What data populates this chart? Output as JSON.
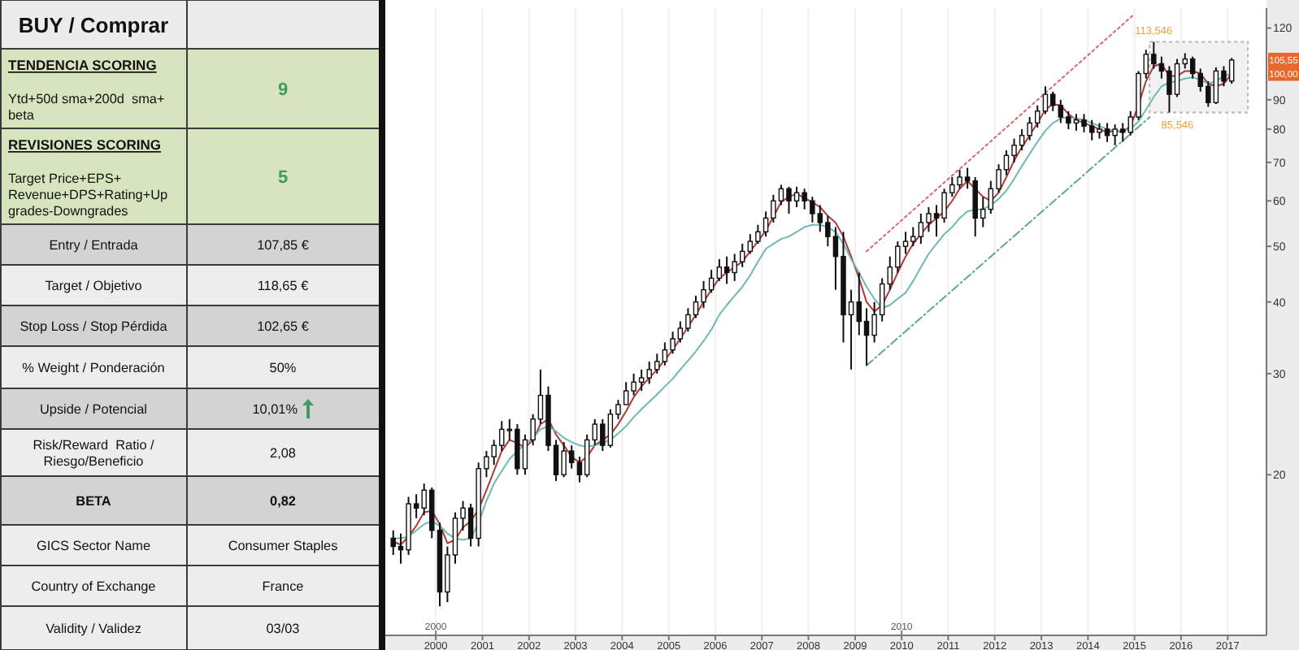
{
  "chart_data": [
    {
      "type": "other",
      "title": "BUY / Comprar",
      "categories": [
        "TENDENCIA SCORING\nYtd+50d sma+200d  sma+\nbeta",
        "REVISIONES SCORING\nTarget Price+EPS+\nRevenue+DPS+Rating+Up\ngrades-Downgrades",
        "Entry / Entrada",
        "Target / Objetivo",
        "Stop Loss / Stop Pérdida",
        "% Weight / Ponderación",
        "Upside / Potencial",
        "Risk/Reward  Ratio /\nRiesgo/Beneficio",
        "BETA",
        "GICS Sector Name",
        "Country of Exchange",
        "Validity / Validez"
      ],
      "annotations": [
        "9",
        "5",
        "107,85 €",
        "118,65 €",
        "102,65 €",
        "50%",
        "10,01%",
        "2,08",
        "0,82",
        "Consumer Staples",
        "France",
        "03/03"
      ]
    },
    {
      "type": "candlestick",
      "log": true,
      "grid": "x",
      "xlim": [
        "1998-12",
        "2017-11"
      ],
      "xticks": [
        "2000",
        "2001",
        "2002",
        "2003",
        "2004",
        "2005",
        "2006",
        "2007",
        "2008",
        "2009",
        "2010",
        "2011",
        "2012",
        "2013",
        "2014",
        "2015",
        "2016",
        "2017"
      ],
      "x2lim": [
        "1998-12",
        "2017-11"
      ],
      "x2ticks": [
        "2000",
        "2010"
      ],
      "ylim": [
        10.5,
        130
      ],
      "yticks": [
        20,
        30,
        40,
        50,
        60,
        70,
        80,
        90,
        120
      ],
      "x": [
        "1999-02",
        "1999-04",
        "1999-06",
        "1999-08",
        "1999-10",
        "1999-12",
        "2000-02",
        "2000-04",
        "2000-06",
        "2000-08",
        "2000-10",
        "2000-12",
        "2001-02",
        "2001-04",
        "2001-06",
        "2001-08",
        "2001-10",
        "2001-12",
        "2002-02",
        "2002-04",
        "2002-06",
        "2002-08",
        "2002-10",
        "2002-12",
        "2003-02",
        "2003-04",
        "2003-06",
        "2003-08",
        "2003-10",
        "2003-12",
        "2004-02",
        "2004-04",
        "2004-06",
        "2004-08",
        "2004-10",
        "2004-12",
        "2005-02",
        "2005-04",
        "2005-06",
        "2005-08",
        "2005-10",
        "2005-12",
        "2006-02",
        "2006-04",
        "2006-06",
        "2006-08",
        "2006-10",
        "2006-12",
        "2007-02",
        "2007-04",
        "2007-06",
        "2007-08",
        "2007-10",
        "2007-12",
        "2008-02",
        "2008-04",
        "2008-06",
        "2008-08",
        "2008-10",
        "2008-12",
        "2009-02",
        "2009-04",
        "2009-06",
        "2009-08",
        "2009-10",
        "2009-12",
        "2010-02",
        "2010-04",
        "2010-06",
        "2010-08",
        "2010-10",
        "2010-12",
        "2011-02",
        "2011-04",
        "2011-06",
        "2011-08",
        "2011-10",
        "2011-12",
        "2012-02",
        "2012-04",
        "2012-06",
        "2012-08",
        "2012-10",
        "2012-12",
        "2013-02",
        "2013-04",
        "2013-06",
        "2013-08",
        "2013-10",
        "2013-12",
        "2014-02",
        "2014-04",
        "2014-06",
        "2014-08",
        "2014-10",
        "2014-12",
        "2015-02",
        "2015-04",
        "2015-06",
        "2015-08",
        "2015-10",
        "2015-12",
        "2016-02",
        "2016-04",
        "2016-06",
        "2016-08",
        "2016-10",
        "2016-12",
        "2017-02"
      ],
      "ohlc": [
        [
          15.5,
          16,
          14.5,
          15
        ],
        [
          15,
          15.8,
          14,
          14.8
        ],
        [
          14.8,
          18.3,
          14.5,
          17.8
        ],
        [
          17.8,
          18.5,
          16.8,
          17.5
        ],
        [
          17.5,
          19.3,
          17,
          18.8
        ],
        [
          18.8,
          19,
          15.5,
          16
        ],
        [
          16,
          16.5,
          11.8,
          12.5
        ],
        [
          12.5,
          15,
          12,
          14.5
        ],
        [
          14.5,
          17.2,
          14,
          16.8
        ],
        [
          16.8,
          18,
          16,
          17.5
        ],
        [
          17.5,
          17.8,
          15,
          15.5
        ],
        [
          15.5,
          21,
          15,
          20.5
        ],
        [
          20.5,
          22,
          19.8,
          21.5
        ],
        [
          21.5,
          23,
          20.8,
          22.5
        ],
        [
          22.5,
          24.8,
          22,
          24
        ],
        [
          24,
          25,
          23,
          24
        ],
        [
          24,
          24.5,
          20,
          20.5
        ],
        [
          20.5,
          23.5,
          20,
          23
        ],
        [
          23,
          25.5,
          22.5,
          25
        ],
        [
          25,
          30.5,
          24.5,
          27.5
        ],
        [
          27.5,
          28.5,
          22,
          22.5
        ],
        [
          22.5,
          23,
          19.5,
          20
        ],
        [
          20,
          22.8,
          19.8,
          22
        ],
        [
          22,
          22.5,
          20.5,
          21
        ],
        [
          21,
          21.5,
          19.4,
          20
        ],
        [
          20,
          23.5,
          19.8,
          23
        ],
        [
          23,
          25,
          22.5,
          24.5
        ],
        [
          24.5,
          25,
          22,
          22.5
        ],
        [
          22.5,
          26,
          22.3,
          25.5
        ],
        [
          25.5,
          27,
          25,
          26.5
        ],
        [
          26.5,
          29,
          26.5,
          28
        ],
        [
          28,
          30,
          27.5,
          29
        ],
        [
          29,
          30.5,
          28,
          29.5
        ],
        [
          29.5,
          31.5,
          28.8,
          30.5
        ],
        [
          30.5,
          32.5,
          30,
          31.5
        ],
        [
          31.5,
          34,
          31,
          33
        ],
        [
          33,
          35.5,
          32.5,
          34.5
        ],
        [
          34.5,
          37,
          34,
          36
        ],
        [
          36,
          39,
          35.5,
          38
        ],
        [
          38,
          41,
          37.5,
          40
        ],
        [
          40,
          43.5,
          39,
          42
        ],
        [
          42,
          45.5,
          41.5,
          44
        ],
        [
          44,
          47.5,
          43.5,
          46
        ],
        [
          46,
          48,
          43,
          45
        ],
        [
          45,
          48.5,
          43.5,
          47
        ],
        [
          47,
          50.5,
          46,
          49
        ],
        [
          49,
          52.5,
          48.5,
          51
        ],
        [
          51,
          54.5,
          50.5,
          53
        ],
        [
          53,
          57.5,
          52,
          56
        ],
        [
          56,
          61.5,
          55,
          60
        ],
        [
          60,
          64,
          59,
          63
        ],
        [
          63,
          63.5,
          57,
          60
        ],
        [
          60,
          63.5,
          58.5,
          62
        ],
        [
          62,
          63,
          58,
          60
        ],
        [
          60,
          61,
          55,
          57
        ],
        [
          57,
          59,
          53,
          55
        ],
        [
          55,
          56.5,
          50,
          52
        ],
        [
          52,
          54,
          42,
          48
        ],
        [
          48,
          53,
          34,
          38
        ],
        [
          38,
          42,
          30.5,
          40
        ],
        [
          40,
          45,
          35,
          37
        ],
        [
          37,
          39,
          31,
          35
        ],
        [
          35,
          40,
          34,
          38
        ],
        [
          38,
          44,
          37,
          43
        ],
        [
          43,
          48,
          42,
          46
        ],
        [
          46,
          51,
          45,
          50
        ],
        [
          50,
          53,
          48.5,
          51
        ],
        [
          51,
          54,
          50,
          52
        ],
        [
          52,
          57,
          50.5,
          55
        ],
        [
          55,
          58.5,
          53,
          57
        ],
        [
          57,
          59,
          52,
          56
        ],
        [
          56,
          63,
          55,
          62
        ],
        [
          62,
          66,
          61,
          64
        ],
        [
          64,
          68,
          63,
          66
        ],
        [
          66,
          68.5,
          63,
          65
        ],
        [
          65,
          66,
          52,
          56
        ],
        [
          56,
          61,
          54,
          58
        ],
        [
          58,
          65,
          57,
          63
        ],
        [
          63,
          69.5,
          62,
          68
        ],
        [
          68,
          73.5,
          66.5,
          72
        ],
        [
          72,
          77,
          70,
          75
        ],
        [
          75,
          80,
          73.5,
          78
        ],
        [
          78,
          84,
          76.5,
          82
        ],
        [
          82,
          88,
          80.5,
          86
        ],
        [
          86,
          95,
          85,
          92
        ],
        [
          92,
          93,
          86,
          88
        ],
        [
          88,
          90,
          82,
          84
        ],
        [
          84,
          86,
          80,
          82
        ],
        [
          82,
          85,
          79.5,
          83
        ],
        [
          83,
          85,
          79,
          81
        ],
        [
          81,
          83,
          76.5,
          79
        ],
        [
          79,
          82,
          77,
          80
        ],
        [
          80,
          82,
          76,
          78
        ],
        [
          78,
          81.5,
          75,
          80
        ],
        [
          80,
          82,
          76,
          79
        ],
        [
          79,
          86,
          78,
          84
        ],
        [
          84,
          101,
          83,
          100
        ],
        [
          100,
          110,
          98,
          108
        ],
        [
          108,
          113.546,
          102,
          104
        ],
        [
          104,
          107,
          98,
          101
        ],
        [
          101,
          103,
          85.546,
          92
        ],
        [
          92,
          106,
          91,
          104
        ],
        [
          104,
          108.5,
          102,
          106
        ],
        [
          106,
          107,
          98,
          100
        ],
        [
          100,
          102,
          93,
          95
        ],
        [
          95,
          97,
          87.5,
          89
        ],
        [
          89,
          102.5,
          88.5,
          101
        ],
        [
          101,
          103,
          95,
          97
        ],
        [
          97,
          106.5,
          96,
          105.55
        ]
      ],
      "series": [
        {
          "type": "line",
          "color": "#b03a36",
          "values": [
            15.3,
            15.1,
            15.6,
            16.3,
            17.2,
            17.3,
            16.4,
            15.2,
            15.4,
            16.2,
            16.6,
            17.4,
            18.8,
            20.3,
            22,
            23,
            22.7,
            22.3,
            23,
            24.5,
            25,
            23.5,
            22.5,
            21.5,
            21,
            21.5,
            22.5,
            23,
            23.5,
            24.5,
            25.8,
            27.3,
            28.5,
            29.5,
            30.5,
            31.7,
            33,
            34.5,
            36.2,
            38,
            40,
            42,
            44,
            45,
            46,
            47,
            49,
            51,
            53.3,
            56.3,
            59.7,
            61,
            61.7,
            60.7,
            59.7,
            58.5,
            56.5,
            55,
            52,
            48,
            44,
            40,
            38.5,
            39.5,
            42,
            45,
            48,
            50.5,
            52.5,
            54.5,
            56,
            57.5,
            60,
            63,
            65,
            63,
            61,
            60,
            62,
            66,
            70.5,
            74.5,
            78,
            82,
            86.5,
            88.5,
            88,
            85,
            83,
            82,
            81,
            80,
            79,
            79.5,
            79,
            81,
            88,
            97,
            103,
            104,
            99,
            99,
            101,
            101,
            100,
            96,
            95,
            96,
            100
          ]
        },
        {
          "type": "line",
          "color": "#6fb8b4",
          "values": [
            15.5,
            15.5,
            15.6,
            16,
            16.4,
            16.6,
            16.3,
            15.8,
            15.5,
            15.4,
            15.5,
            16.5,
            18,
            19.3,
            20.3,
            21.3,
            22,
            22.6,
            23.2,
            24,
            24.3,
            23.8,
            23.2,
            22.8,
            22.5,
            22.4,
            22.5,
            22.7,
            23,
            23.6,
            24.3,
            25.2,
            26,
            26.8,
            27.6,
            28.5,
            29.4,
            30.5,
            31.6,
            32.8,
            34.2,
            35.8,
            38,
            39.5,
            41,
            42.5,
            44.5,
            47,
            49.5,
            50.5,
            51.5,
            52,
            53,
            54,
            54.5,
            54.5,
            54,
            53,
            50.5,
            47.5,
            45,
            42.5,
            40.5,
            39,
            39.5,
            40.5,
            41.5,
            43.5,
            46,
            48.5,
            50.5,
            52.5,
            54,
            56,
            57.5,
            58,
            58,
            59,
            60.5,
            62.5,
            65.5,
            69,
            72.5,
            76,
            79.5,
            82,
            83.5,
            84,
            83.5,
            83,
            82,
            81,
            80,
            79.5,
            79.5,
            80,
            82.5,
            86.5,
            91,
            95,
            96.5,
            97,
            98,
            98.5,
            97.5,
            96,
            97,
            99,
            100
          ]
        },
        {
          "type": "line",
          "color": "#d9666a",
          "line_style": "dotted",
          "x": [
            "2009-04",
            "2015-01"
          ],
          "values": [
            49,
            127
          ]
        },
        {
          "type": "line",
          "color": "#5fa88c",
          "line_style": "dashed",
          "x": [
            "2009-04",
            "2015-05"
          ],
          "values": [
            31,
            84
          ]
        }
      ],
      "annotations": [
        {
          "text": "113,546",
          "x": "2015-06",
          "y": 113.546
        },
        {
          "text": "85,546",
          "x": "2015-10",
          "y": 85.546
        },
        {
          "text": "105,55",
          "y": 105.55
        },
        {
          "text": "100,00",
          "y": 100
        }
      ]
    }
  ]
}
